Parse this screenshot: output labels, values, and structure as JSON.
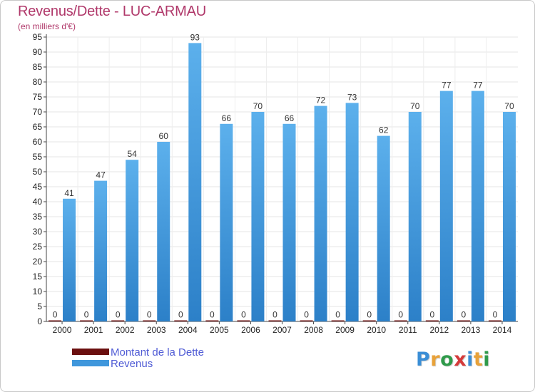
{
  "title": "Revenus/Dette - LUC-ARMAU",
  "subtitle": "(en milliers d'€)",
  "colors": {
    "title": "#b0386a",
    "revenus": "#3f97dc",
    "dette": "#6b0f0f",
    "legend_text": "#4f5bd5"
  },
  "logo": {
    "text": "Proxiti",
    "letters": [
      "P",
      "r",
      "o",
      "x",
      "i",
      "t",
      "i"
    ],
    "letter_colors": [
      "#3a8ed6",
      "#e8a23a",
      "#2f9a4a",
      "#d53a3a",
      "#3a8ed6",
      "#e8a23a",
      "#2f9a4a"
    ]
  },
  "chart_data": {
    "type": "bar",
    "categories": [
      "2000",
      "2001",
      "2002",
      "2003",
      "2004",
      "2005",
      "2006",
      "2007",
      "2008",
      "2009",
      "2010",
      "2011",
      "2012",
      "2013",
      "2014"
    ],
    "series": [
      {
        "name": "Montant de la Dette",
        "color": "#6b0f0f",
        "values": [
          0,
          0,
          0,
          0,
          0,
          0,
          0,
          0,
          0,
          0,
          0,
          0,
          0,
          0,
          0
        ]
      },
      {
        "name": "Revenus",
        "color": "#3f97dc",
        "values": [
          41,
          47,
          54,
          60,
          93,
          66,
          70,
          66,
          72,
          73,
          62,
          70,
          77,
          77,
          70
        ]
      }
    ],
    "ylim": [
      0,
      95
    ],
    "yticks": [
      0,
      5,
      10,
      15,
      20,
      25,
      30,
      35,
      40,
      45,
      50,
      55,
      60,
      65,
      70,
      75,
      80,
      85,
      90,
      95
    ],
    "grid": true,
    "legend_position": "bottom-left"
  }
}
